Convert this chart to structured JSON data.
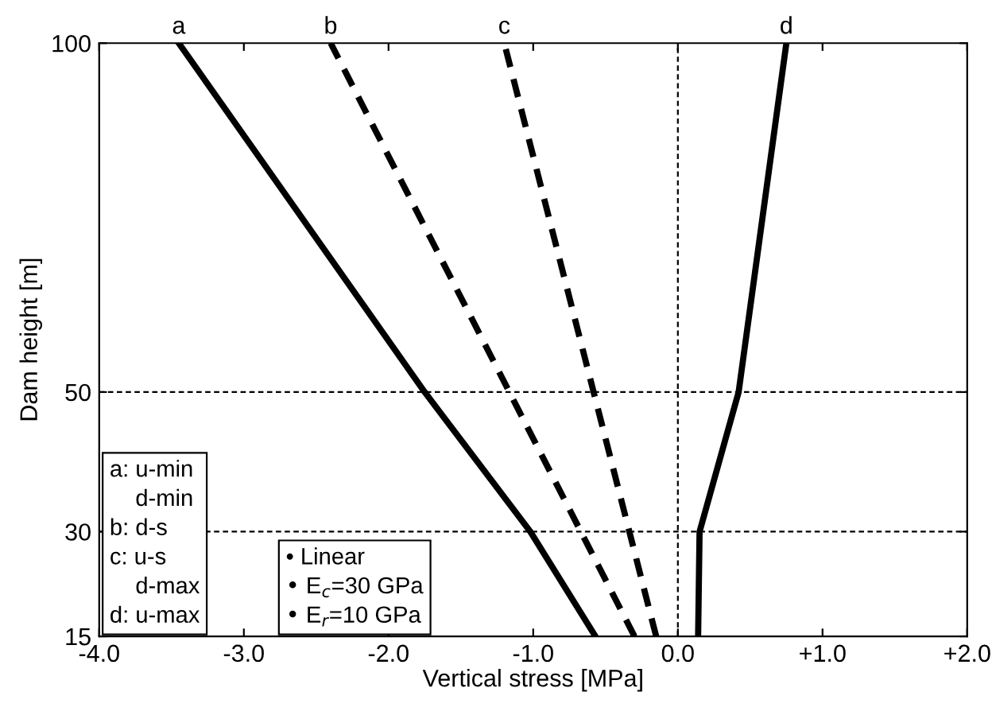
{
  "chart_data": {
    "type": "line",
    "xlabel": "Vertical stress [MPa]",
    "ylabel": "Dam height [m]",
    "xlim": [
      -4.0,
      2.0
    ],
    "ylim": [
      15,
      100
    ],
    "xticks": [
      {
        "value": -4,
        "label": "-4.0"
      },
      {
        "value": -3,
        "label": "-3.0"
      },
      {
        "value": -2,
        "label": "-2.0"
      },
      {
        "value": -1,
        "label": "-1.0"
      },
      {
        "value": 0,
        "label": "0.0"
      },
      {
        "value": 1,
        "label": "+1.0"
      },
      {
        "value": 2,
        "label": "+2.0"
      }
    ],
    "yticks": [
      15,
      30,
      50,
      100
    ],
    "grid": false,
    "marker": "none",
    "ref_lines": [
      {
        "axis": "x",
        "value": 0,
        "line_style": "dashed",
        "color": "#000000"
      },
      {
        "axis": "y",
        "value": 50,
        "line_style": "dashed",
        "color": "#000000"
      },
      {
        "axis": "y",
        "value": 30,
        "line_style": "dashed",
        "color": "#000000"
      }
    ],
    "series": [
      {
        "name": "a",
        "color": "#000000",
        "line_style": "solid",
        "x": [
          -0.57,
          -1.02,
          -1.75,
          -3.45
        ],
        "values": [
          15,
          30,
          50,
          100
        ]
      },
      {
        "name": "b",
        "color": "#000000",
        "line_style": "dashed",
        "x": [
          -0.3,
          -2.4
        ],
        "values": [
          15,
          100
        ]
      },
      {
        "name": "c",
        "color": "#000000",
        "line_style": "dashed",
        "x": [
          -0.15,
          -1.2
        ],
        "values": [
          15,
          100
        ]
      },
      {
        "name": "d",
        "color": "#000000",
        "line_style": "solid",
        "x": [
          0.14,
          0.15,
          0.42,
          0.75
        ],
        "values": [
          15,
          30,
          50,
          100
        ]
      }
    ],
    "annotations": [
      "a: u-min\n    d-min\nb: d-s\nc: u-s\n    d-max\nd: u-max",
      "• Linear\n• E$_{c}$=30 GPa\n• E$_{r}$=10 GPa"
    ]
  }
}
